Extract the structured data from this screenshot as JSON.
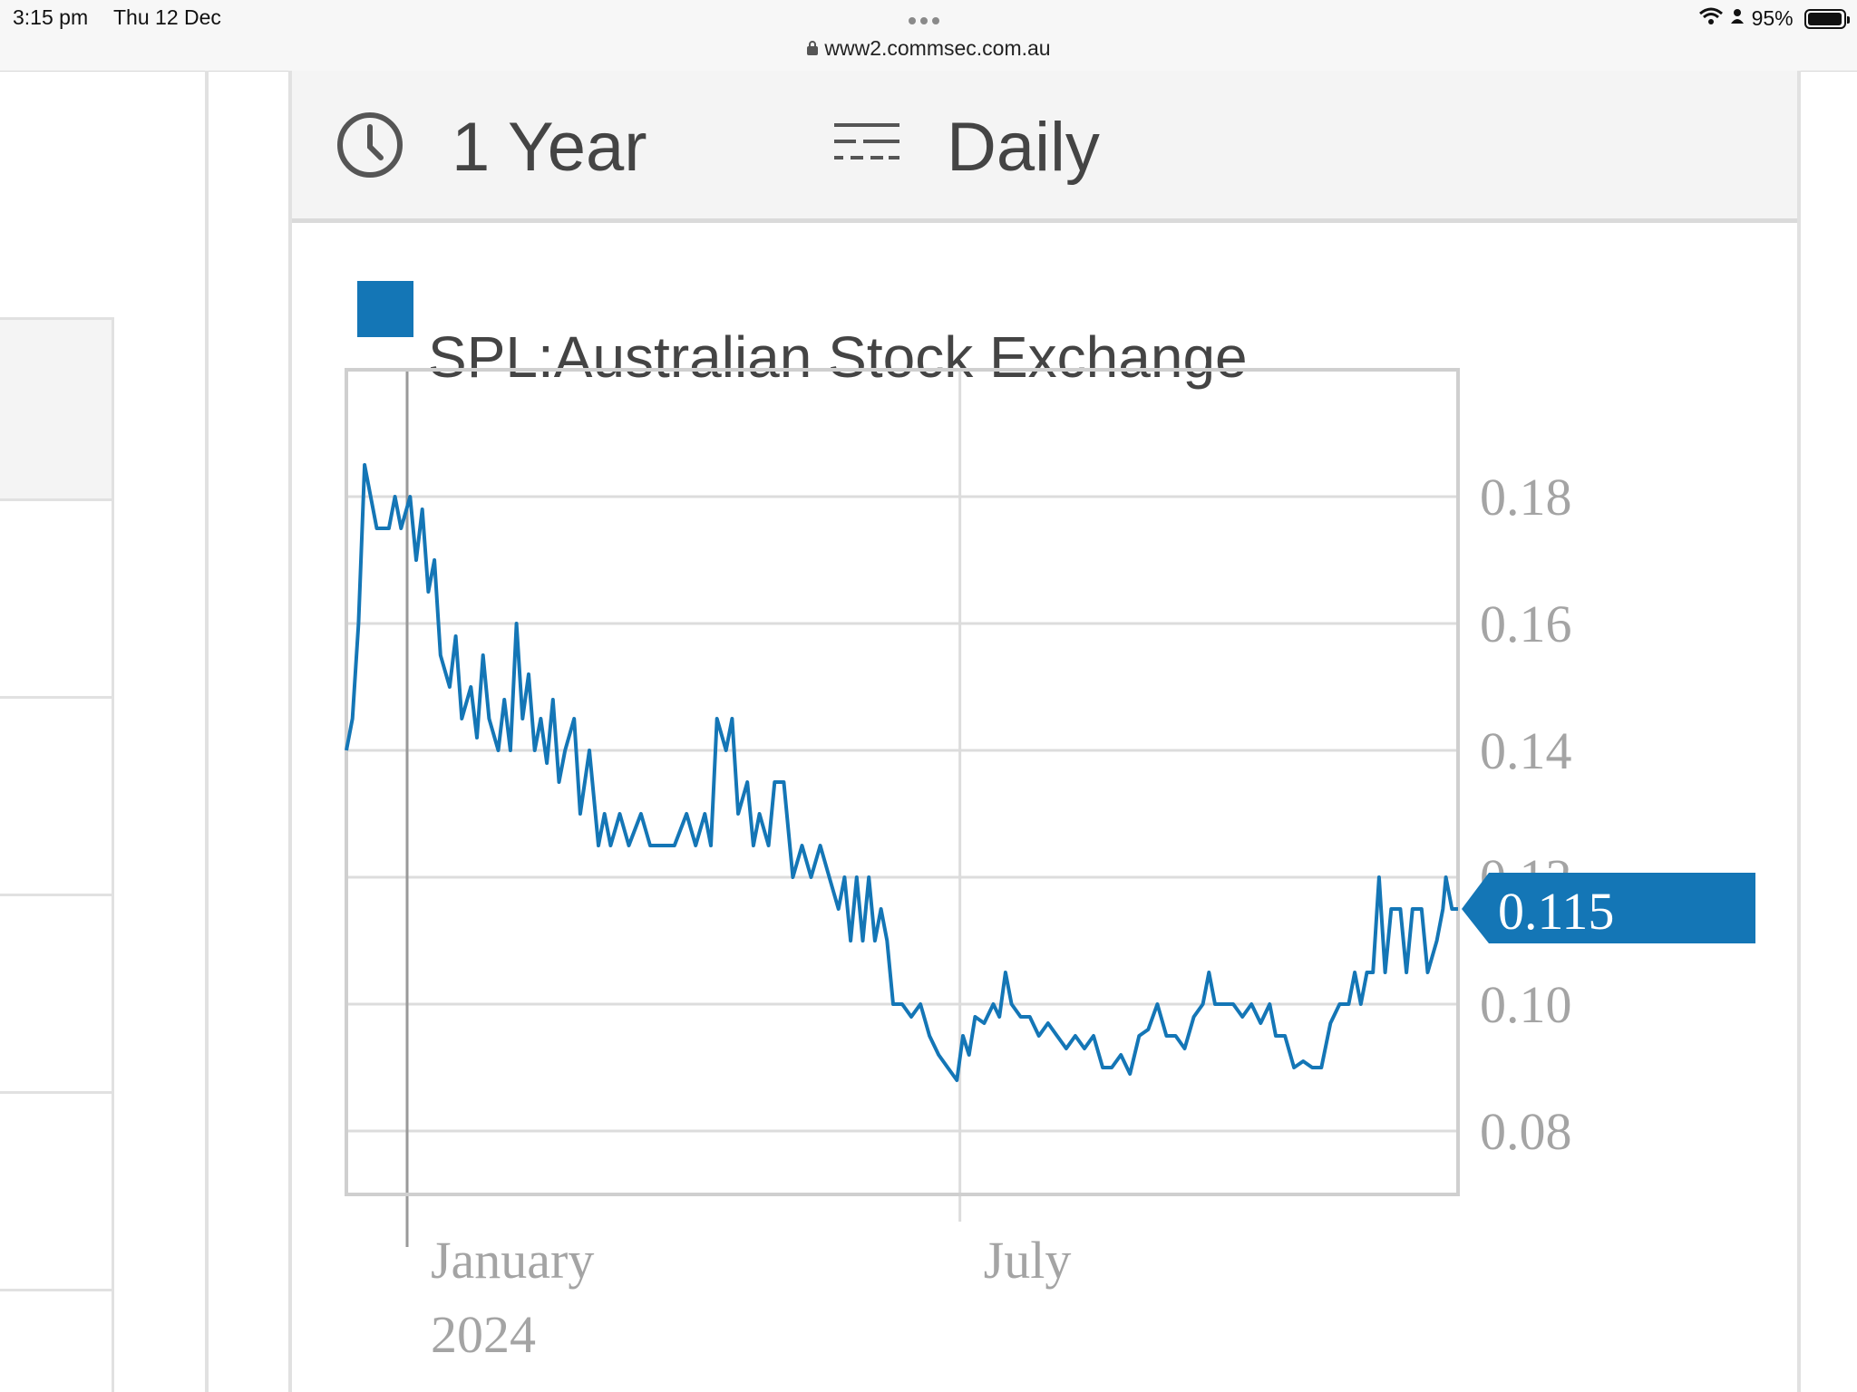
{
  "status_bar": {
    "time": "3:15 pm",
    "date": "Thu 12 Dec",
    "url": "www2.commsec.com.au",
    "battery": "95%",
    "icons": [
      "wifi-icon",
      "person-icon",
      "battery-icon",
      "lock-icon"
    ]
  },
  "toolbar": {
    "range_label": "1 Year",
    "range_icon": "clock-icon",
    "interval_label": "Daily",
    "interval_icon": "lines-icon"
  },
  "colors": {
    "series": "#1476b6",
    "grid": "#dcdcdc",
    "panel_bg": "#f4f4f4",
    "tick_text": "#a4a4a4"
  },
  "chart_data": {
    "type": "line",
    "title": "",
    "legend": [
      {
        "name": "SPL:Australian Stock Exchange",
        "color": "#1476b6",
        "position": "top-left"
      }
    ],
    "xlabel": "",
    "ylabel": "",
    "x_ticks": [
      {
        "label": "January",
        "sub_label": "2024",
        "value": "2024-01-01"
      },
      {
        "label": "July",
        "value": "2024-07-01"
      }
    ],
    "y_ticks": [
      0.08,
      0.1,
      0.12,
      0.14,
      0.16,
      0.18
    ],
    "y_axis_side": "right",
    "ylim": [
      0.07,
      0.2
    ],
    "xlim": [
      "2023-12-12",
      "2024-12-12"
    ],
    "last_value": "0.115",
    "grid": true,
    "series": [
      {
        "name": "SPL:Australian Stock Exchange",
        "points": [
          [
            "2023-12-12",
            0.14
          ],
          [
            "2023-12-14",
            0.145
          ],
          [
            "2023-12-16",
            0.16
          ],
          [
            "2023-12-18",
            0.185
          ],
          [
            "2023-12-20",
            0.18
          ],
          [
            "2023-12-22",
            0.175
          ],
          [
            "2023-12-26",
            0.175
          ],
          [
            "2023-12-28",
            0.18
          ],
          [
            "2023-12-30",
            0.175
          ],
          [
            "2024-01-02",
            0.18
          ],
          [
            "2024-01-04",
            0.17
          ],
          [
            "2024-01-06",
            0.178
          ],
          [
            "2024-01-08",
            0.165
          ],
          [
            "2024-01-10",
            0.17
          ],
          [
            "2024-01-12",
            0.155
          ],
          [
            "2024-01-15",
            0.15
          ],
          [
            "2024-01-17",
            0.158
          ],
          [
            "2024-01-19",
            0.145
          ],
          [
            "2024-01-22",
            0.15
          ],
          [
            "2024-01-24",
            0.142
          ],
          [
            "2024-01-26",
            0.155
          ],
          [
            "2024-01-28",
            0.145
          ],
          [
            "2024-01-31",
            0.14
          ],
          [
            "2024-02-02",
            0.148
          ],
          [
            "2024-02-04",
            0.14
          ],
          [
            "2024-02-06",
            0.16
          ],
          [
            "2024-02-08",
            0.145
          ],
          [
            "2024-02-10",
            0.152
          ],
          [
            "2024-02-12",
            0.14
          ],
          [
            "2024-02-14",
            0.145
          ],
          [
            "2024-02-16",
            0.138
          ],
          [
            "2024-02-18",
            0.148
          ],
          [
            "2024-02-20",
            0.135
          ],
          [
            "2024-02-22",
            0.14
          ],
          [
            "2024-02-25",
            0.145
          ],
          [
            "2024-02-27",
            0.13
          ],
          [
            "2024-03-01",
            0.14
          ],
          [
            "2024-03-04",
            0.125
          ],
          [
            "2024-03-06",
            0.13
          ],
          [
            "2024-03-08",
            0.125
          ],
          [
            "2024-03-11",
            0.13
          ],
          [
            "2024-03-14",
            0.125
          ],
          [
            "2024-03-18",
            0.13
          ],
          [
            "2024-03-21",
            0.125
          ],
          [
            "2024-03-25",
            0.125
          ],
          [
            "2024-03-29",
            0.125
          ],
          [
            "2024-04-02",
            0.13
          ],
          [
            "2024-04-05",
            0.125
          ],
          [
            "2024-04-08",
            0.13
          ],
          [
            "2024-04-10",
            0.125
          ],
          [
            "2024-04-12",
            0.145
          ],
          [
            "2024-04-15",
            0.14
          ],
          [
            "2024-04-17",
            0.145
          ],
          [
            "2024-04-19",
            0.13
          ],
          [
            "2024-04-22",
            0.135
          ],
          [
            "2024-04-24",
            0.125
          ],
          [
            "2024-04-26",
            0.13
          ],
          [
            "2024-04-29",
            0.125
          ],
          [
            "2024-05-01",
            0.135
          ],
          [
            "2024-05-04",
            0.135
          ],
          [
            "2024-05-07",
            0.12
          ],
          [
            "2024-05-10",
            0.125
          ],
          [
            "2024-05-13",
            0.12
          ],
          [
            "2024-05-16",
            0.125
          ],
          [
            "2024-05-19",
            0.12
          ],
          [
            "2024-05-22",
            0.115
          ],
          [
            "2024-05-24",
            0.12
          ],
          [
            "2024-05-26",
            0.11
          ],
          [
            "2024-05-28",
            0.12
          ],
          [
            "2024-05-30",
            0.11
          ],
          [
            "2024-06-01",
            0.12
          ],
          [
            "2024-06-03",
            0.11
          ],
          [
            "2024-06-05",
            0.115
          ],
          [
            "2024-06-07",
            0.11
          ],
          [
            "2024-06-09",
            0.1
          ],
          [
            "2024-06-12",
            0.1
          ],
          [
            "2024-06-15",
            0.098
          ],
          [
            "2024-06-18",
            0.1
          ],
          [
            "2024-06-21",
            0.095
          ],
          [
            "2024-06-24",
            0.092
          ],
          [
            "2024-06-27",
            0.09
          ],
          [
            "2024-06-30",
            0.088
          ],
          [
            "2024-07-02",
            0.095
          ],
          [
            "2024-07-04",
            0.092
          ],
          [
            "2024-07-06",
            0.098
          ],
          [
            "2024-07-09",
            0.097
          ],
          [
            "2024-07-12",
            0.1
          ],
          [
            "2024-07-14",
            0.098
          ],
          [
            "2024-07-16",
            0.105
          ],
          [
            "2024-07-18",
            0.1
          ],
          [
            "2024-07-21",
            0.098
          ],
          [
            "2024-07-24",
            0.098
          ],
          [
            "2024-07-27",
            0.095
          ],
          [
            "2024-07-30",
            0.097
          ],
          [
            "2024-08-02",
            0.095
          ],
          [
            "2024-08-05",
            0.093
          ],
          [
            "2024-08-08",
            0.095
          ],
          [
            "2024-08-11",
            0.093
          ],
          [
            "2024-08-14",
            0.095
          ],
          [
            "2024-08-17",
            0.09
          ],
          [
            "2024-08-20",
            0.09
          ],
          [
            "2024-08-23",
            0.092
          ],
          [
            "2024-08-26",
            0.089
          ],
          [
            "2024-08-29",
            0.095
          ],
          [
            "2024-09-01",
            0.096
          ],
          [
            "2024-09-04",
            0.1
          ],
          [
            "2024-09-07",
            0.095
          ],
          [
            "2024-09-10",
            0.095
          ],
          [
            "2024-09-13",
            0.093
          ],
          [
            "2024-09-16",
            0.098
          ],
          [
            "2024-09-19",
            0.1
          ],
          [
            "2024-09-21",
            0.105
          ],
          [
            "2024-09-23",
            0.1
          ],
          [
            "2024-09-26",
            0.1
          ],
          [
            "2024-09-29",
            0.1
          ],
          [
            "2024-10-02",
            0.098
          ],
          [
            "2024-10-05",
            0.1
          ],
          [
            "2024-10-08",
            0.097
          ],
          [
            "2024-10-11",
            0.1
          ],
          [
            "2024-10-13",
            0.095
          ],
          [
            "2024-10-16",
            0.095
          ],
          [
            "2024-10-19",
            0.09
          ],
          [
            "2024-10-22",
            0.091
          ],
          [
            "2024-10-25",
            0.09
          ],
          [
            "2024-10-28",
            0.09
          ],
          [
            "2024-10-31",
            0.097
          ],
          [
            "2024-11-03",
            0.1
          ],
          [
            "2024-11-06",
            0.1
          ],
          [
            "2024-11-08",
            0.105
          ],
          [
            "2024-11-10",
            0.1
          ],
          [
            "2024-11-12",
            0.105
          ],
          [
            "2024-11-14",
            0.105
          ],
          [
            "2024-11-16",
            0.12
          ],
          [
            "2024-11-18",
            0.105
          ],
          [
            "2024-11-20",
            0.115
          ],
          [
            "2024-11-23",
            0.115
          ],
          [
            "2024-11-25",
            0.105
          ],
          [
            "2024-11-27",
            0.115
          ],
          [
            "2024-11-30",
            0.115
          ],
          [
            "2024-12-02",
            0.105
          ],
          [
            "2024-12-05",
            0.11
          ],
          [
            "2024-12-07",
            0.115
          ],
          [
            "2024-12-08",
            0.12
          ],
          [
            "2024-12-10",
            0.115
          ],
          [
            "2024-12-12",
            0.115
          ]
        ]
      }
    ]
  }
}
